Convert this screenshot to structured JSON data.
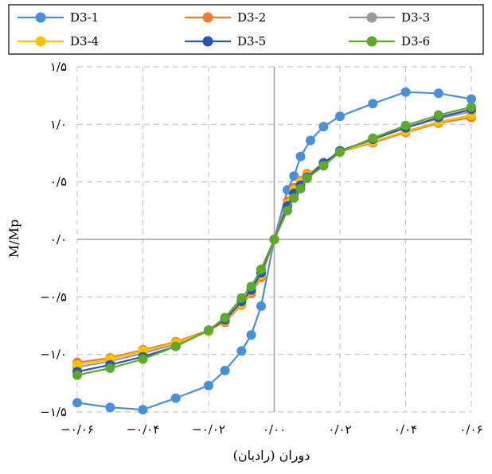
{
  "chart_data": {
    "type": "line",
    "title": "",
    "xlabel": "دوران (رادیان)",
    "ylabel": "M/Mp",
    "xlim": [
      -0.06,
      0.06
    ],
    "ylim": [
      -1.5,
      1.5
    ],
    "xticks": [
      -0.06,
      -0.04,
      -0.02,
      0.0,
      0.02,
      0.04,
      0.06
    ],
    "xtick_labels": [
      "−۰/۰۶",
      "−۰/۰۴",
      "−۰/۰۲",
      "۰/۰۰",
      "۰/۰۲",
      "۰/۰۴",
      "۰/۰۶"
    ],
    "yticks": [
      1.5,
      1.0,
      0.5,
      0.0,
      -0.5,
      -1.0,
      -1.5
    ],
    "ytick_labels": [
      "۱/۵",
      "۱/۰",
      "۰/۵",
      "۰/۰",
      "−۰/۵",
      "−۱/۰",
      "−۱/۵"
    ],
    "grid": true,
    "legend_position": "top",
    "series": [
      {
        "name": "D3-1",
        "color": "#4a90d9",
        "points": [
          [
            -0.06,
            -1.42
          ],
          [
            -0.05,
            -1.46
          ],
          [
            -0.04,
            -1.48
          ],
          [
            -0.03,
            -1.38
          ],
          [
            -0.02,
            -1.27
          ],
          [
            -0.015,
            -1.14
          ],
          [
            -0.01,
            -0.97
          ],
          [
            -0.007,
            -0.83
          ],
          [
            -0.004,
            -0.58
          ],
          [
            0.0,
            0.0
          ],
          [
            0.004,
            0.43
          ],
          [
            0.006,
            0.55
          ],
          [
            0.008,
            0.72
          ],
          [
            0.011,
            0.86
          ],
          [
            0.015,
            0.98
          ],
          [
            0.02,
            1.07
          ],
          [
            0.03,
            1.18
          ],
          [
            0.04,
            1.28
          ],
          [
            0.05,
            1.27
          ],
          [
            0.06,
            1.22
          ]
        ]
      },
      {
        "name": "D3-2",
        "color": "#ed7d31",
        "points": [
          [
            -0.06,
            -1.07
          ],
          [
            -0.05,
            -1.03
          ],
          [
            -0.04,
            -0.96
          ],
          [
            -0.03,
            -0.89
          ],
          [
            -0.02,
            -0.79
          ],
          [
            -0.015,
            -0.72
          ],
          [
            -0.01,
            -0.57
          ],
          [
            -0.007,
            -0.47
          ],
          [
            -0.004,
            -0.33
          ],
          [
            0.0,
            0.0
          ],
          [
            0.004,
            0.33
          ],
          [
            0.006,
            0.45
          ],
          [
            0.008,
            0.51
          ],
          [
            0.01,
            0.57
          ],
          [
            0.015,
            0.64
          ],
          [
            0.02,
            0.76
          ],
          [
            0.03,
            0.84
          ],
          [
            0.04,
            0.93
          ],
          [
            0.05,
            1.01
          ],
          [
            0.06,
            1.06
          ]
        ]
      },
      {
        "name": "D3-3",
        "color": "#999999",
        "points": [
          [
            -0.06,
            -1.11
          ],
          [
            -0.05,
            -1.06
          ],
          [
            -0.04,
            -0.99
          ],
          [
            -0.03,
            -0.91
          ],
          [
            -0.02,
            -0.8
          ],
          [
            -0.015,
            -0.71
          ],
          [
            -0.01,
            -0.56
          ],
          [
            -0.007,
            -0.45
          ],
          [
            -0.004,
            -0.31
          ],
          [
            0.0,
            0.0
          ],
          [
            0.004,
            0.3
          ],
          [
            0.006,
            0.42
          ],
          [
            0.008,
            0.49
          ],
          [
            0.01,
            0.55
          ],
          [
            0.015,
            0.67
          ],
          [
            0.02,
            0.76
          ],
          [
            0.03,
            0.87
          ],
          [
            0.04,
            0.97
          ],
          [
            0.05,
            1.05
          ],
          [
            0.06,
            1.11
          ]
        ]
      },
      {
        "name": "D3-4",
        "color": "#ffc000",
        "points": [
          [
            -0.06,
            -1.09
          ],
          [
            -0.05,
            -1.04
          ],
          [
            -0.04,
            -0.97
          ],
          [
            -0.03,
            -0.9
          ],
          [
            -0.02,
            -0.8
          ],
          [
            -0.015,
            -0.71
          ],
          [
            -0.01,
            -0.56
          ],
          [
            -0.007,
            -0.45
          ],
          [
            -0.004,
            -0.31
          ],
          [
            0.0,
            0.0
          ],
          [
            0.004,
            0.31
          ],
          [
            0.006,
            0.43
          ],
          [
            0.008,
            0.5
          ],
          [
            0.01,
            0.56
          ],
          [
            0.015,
            0.65
          ],
          [
            0.02,
            0.76
          ],
          [
            0.03,
            0.85
          ],
          [
            0.04,
            0.94
          ],
          [
            0.05,
            1.02
          ],
          [
            0.06,
            1.08
          ]
        ]
      },
      {
        "name": "D3-5",
        "color": "#2b55b5",
        "points": [
          [
            -0.06,
            -1.15
          ],
          [
            -0.05,
            -1.09
          ],
          [
            -0.04,
            -1.02
          ],
          [
            -0.03,
            -0.93
          ],
          [
            -0.02,
            -0.79
          ],
          [
            -0.015,
            -0.7
          ],
          [
            -0.01,
            -0.54
          ],
          [
            -0.007,
            -0.44
          ],
          [
            -0.004,
            -0.29
          ],
          [
            0.0,
            0.0
          ],
          [
            0.004,
            0.29
          ],
          [
            0.006,
            0.4
          ],
          [
            0.008,
            0.47
          ],
          [
            0.01,
            0.54
          ],
          [
            0.015,
            0.66
          ],
          [
            0.02,
            0.77
          ],
          [
            0.03,
            0.87
          ],
          [
            0.04,
            0.97
          ],
          [
            0.05,
            1.06
          ],
          [
            0.06,
            1.13
          ]
        ]
      },
      {
        "name": "D3-6",
        "color": "#5fa82e",
        "points": [
          [
            -0.06,
            -1.18
          ],
          [
            -0.05,
            -1.12
          ],
          [
            -0.04,
            -1.04
          ],
          [
            -0.03,
            -0.93
          ],
          [
            -0.02,
            -0.79
          ],
          [
            -0.015,
            -0.68
          ],
          [
            -0.01,
            -0.51
          ],
          [
            -0.007,
            -0.41
          ],
          [
            -0.004,
            -0.26
          ],
          [
            0.0,
            0.0
          ],
          [
            0.004,
            0.25
          ],
          [
            0.006,
            0.36
          ],
          [
            0.008,
            0.44
          ],
          [
            0.01,
            0.53
          ],
          [
            0.015,
            0.64
          ],
          [
            0.02,
            0.76
          ],
          [
            0.03,
            0.88
          ],
          [
            0.04,
            0.99
          ],
          [
            0.05,
            1.08
          ],
          [
            0.06,
            1.15
          ]
        ]
      }
    ]
  }
}
